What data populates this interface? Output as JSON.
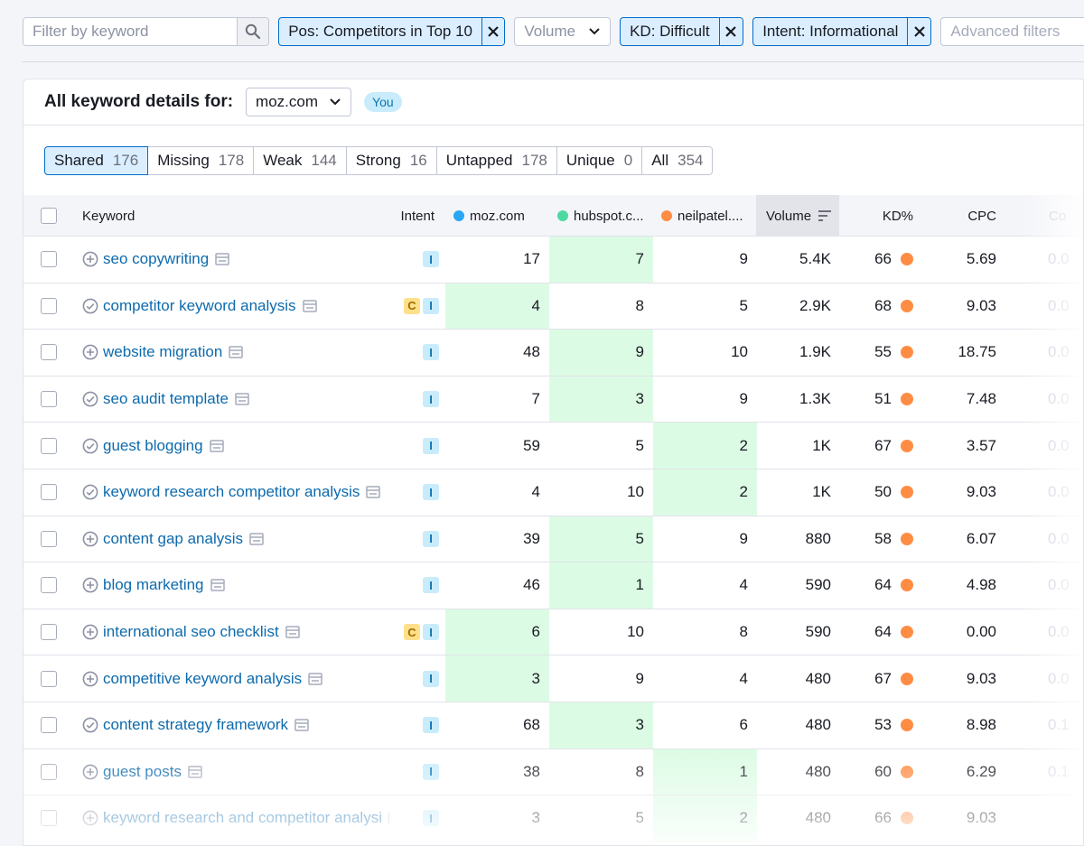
{
  "filters": {
    "search_placeholder": "Filter by keyword",
    "chips": [
      {
        "label": "Pos: Competitors in Top 10"
      },
      {
        "label": "KD: Difficult"
      },
      {
        "label": "Intent: Informational"
      }
    ],
    "volume_label": "Volume",
    "advanced_label": "Advanced filters"
  },
  "card": {
    "title": "All keyword details for:",
    "domain": "moz.com",
    "you_badge": "You"
  },
  "segments": [
    {
      "label": "Shared",
      "count": "176",
      "active": true
    },
    {
      "label": "Missing",
      "count": "178"
    },
    {
      "label": "Weak",
      "count": "144"
    },
    {
      "label": "Strong",
      "count": "16"
    },
    {
      "label": "Untapped",
      "count": "178"
    },
    {
      "label": "Unique",
      "count": "0"
    },
    {
      "label": "All",
      "count": "354"
    }
  ],
  "colors": {
    "moz": "#2aa6f5",
    "hubspot": "#4ed9a0",
    "neilpatel": "#ff8c43",
    "highlight": "#dcfbe4"
  },
  "table": {
    "headers": {
      "keyword": "Keyword",
      "intent": "Intent",
      "moz": "moz.com",
      "hubspot": "hubspot.c...",
      "neilpatel": "neilpatel....",
      "volume": "Volume",
      "kd": "KD%",
      "cpc": "CPC",
      "com": "Co"
    },
    "rows": [
      {
        "keyword": "seo copywriting",
        "icon": "plus",
        "intent": [
          "I"
        ],
        "moz": "17",
        "hubspot": "7",
        "neil": "9",
        "volume": "5.4K",
        "kd": "66",
        "cpc": "5.69",
        "com": "0.0",
        "hl": "hubspot"
      },
      {
        "keyword": "competitor keyword analysis",
        "icon": "check",
        "intent": [
          "C",
          "I"
        ],
        "moz": "4",
        "hubspot": "8",
        "neil": "5",
        "volume": "2.9K",
        "kd": "68",
        "cpc": "9.03",
        "com": "0.0",
        "hl": "moz"
      },
      {
        "keyword": "website migration",
        "icon": "plus",
        "intent": [
          "I"
        ],
        "moz": "48",
        "hubspot": "9",
        "neil": "10",
        "volume": "1.9K",
        "kd": "55",
        "cpc": "18.75",
        "com": "0.0",
        "hl": "hubspot"
      },
      {
        "keyword": "seo audit template",
        "icon": "check",
        "intent": [
          "I"
        ],
        "moz": "7",
        "hubspot": "3",
        "neil": "9",
        "volume": "1.3K",
        "kd": "51",
        "cpc": "7.48",
        "com": "0.0",
        "hl": "hubspot"
      },
      {
        "keyword": "guest blogging",
        "icon": "check",
        "intent": [
          "I"
        ],
        "moz": "59",
        "hubspot": "5",
        "neil": "2",
        "volume": "1K",
        "kd": "67",
        "cpc": "3.57",
        "com": "0.0",
        "hl": "neil"
      },
      {
        "keyword": "keyword research competitor analysis",
        "icon": "check",
        "intent": [
          "I"
        ],
        "moz": "4",
        "hubspot": "10",
        "neil": "2",
        "volume": "1K",
        "kd": "50",
        "cpc": "9.03",
        "com": "0.0",
        "hl": "neil"
      },
      {
        "keyword": "content gap analysis",
        "icon": "plus",
        "intent": [
          "I"
        ],
        "moz": "39",
        "hubspot": "5",
        "neil": "9",
        "volume": "880",
        "kd": "58",
        "cpc": "6.07",
        "com": "0.0",
        "hl": "hubspot"
      },
      {
        "keyword": "blog marketing",
        "icon": "plus",
        "intent": [
          "I"
        ],
        "moz": "46",
        "hubspot": "1",
        "neil": "4",
        "volume": "590",
        "kd": "64",
        "cpc": "4.98",
        "com": "0.0",
        "hl": "hubspot"
      },
      {
        "keyword": "international seo checklist",
        "icon": "plus",
        "intent": [
          "C",
          "I"
        ],
        "moz": "6",
        "hubspot": "10",
        "neil": "8",
        "volume": "590",
        "kd": "64",
        "cpc": "0.00",
        "com": "0.0",
        "hl": "moz"
      },
      {
        "keyword": "competitive keyword analysis",
        "icon": "plus",
        "intent": [
          "I"
        ],
        "moz": "3",
        "hubspot": "9",
        "neil": "4",
        "volume": "480",
        "kd": "67",
        "cpc": "9.03",
        "com": "0.0",
        "hl": "moz"
      },
      {
        "keyword": "content strategy framework",
        "icon": "check",
        "intent": [
          "I"
        ],
        "moz": "68",
        "hubspot": "3",
        "neil": "6",
        "volume": "480",
        "kd": "53",
        "cpc": "8.98",
        "com": "0.1",
        "hl": "hubspot"
      },
      {
        "keyword": "guest posts",
        "icon": "plus",
        "intent": [
          "I"
        ],
        "moz": "38",
        "hubspot": "8",
        "neil": "1",
        "volume": "480",
        "kd": "60",
        "cpc": "6.29",
        "com": "0.1",
        "hl": "neil"
      },
      {
        "keyword": "keyword research and competitor analysi",
        "icon": "plus",
        "intent": [
          "I"
        ],
        "moz": "3",
        "hubspot": "5",
        "neil": "2",
        "volume": "480",
        "kd": "66",
        "cpc": "9.03",
        "com": "",
        "hl": "neil"
      }
    ]
  }
}
